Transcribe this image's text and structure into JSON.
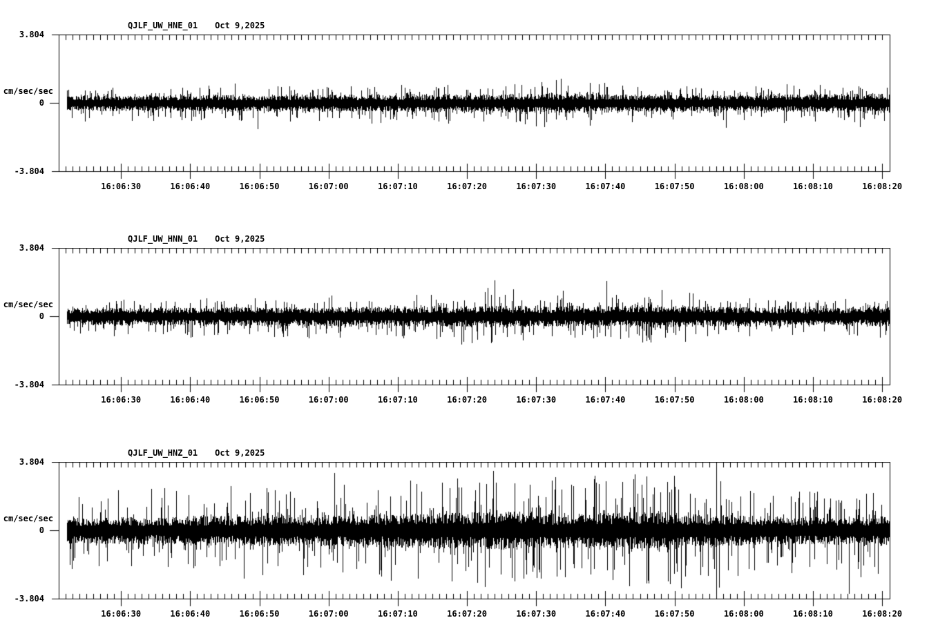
{
  "colors": {
    "foreground": "#000000",
    "background": "#ffffff"
  },
  "chart_data": [
    {
      "type": "line",
      "title": "QJLF_UW_HNE_01",
      "date": "Oct 9,2025",
      "ylabel": "cm/sec/sec",
      "ylim": [
        -3.804,
        3.804
      ],
      "yticks": [
        "3.804",
        "0",
        "-3.804"
      ],
      "x_start": "16:06:21",
      "x_end": "16:08:21",
      "x_major_interval_s": 10,
      "x_minor_interval_s": 1,
      "x_major_tick_labels": [
        "16:06:30",
        "16:06:40",
        "16:06:50",
        "16:07:00",
        "16:07:10",
        "16:07:20",
        "16:07:30",
        "16:07:40",
        "16:07:50",
        "16:08:00",
        "16:08:10",
        "16:08:20"
      ],
      "envelope": {
        "sample_interval_s": 5,
        "band": [
          0.34,
          0.36,
          0.35,
          0.37,
          0.36,
          0.38,
          0.36,
          0.38,
          0.4,
          0.38,
          0.4,
          0.42,
          0.4,
          0.42,
          0.44,
          0.42,
          0.4,
          0.4,
          0.38,
          0.38,
          0.36,
          0.38,
          0.4,
          0.42,
          0.44
        ],
        "peak": [
          0.9,
          0.95,
          1.0,
          0.9,
          1.05,
          1.0,
          1.1,
          0.95,
          1.05,
          1.1,
          1.0,
          1.15,
          1.05,
          1.2,
          1.45,
          1.3,
          1.1,
          1.05,
          1.0,
          0.95,
          1.0,
          1.2,
          0.95,
          1.05,
          1.15
        ]
      },
      "notable_spikes": []
    },
    {
      "type": "line",
      "title": "QJLF_UW_HNN_01",
      "date": "Oct 9,2025",
      "ylabel": "cm/sec/sec",
      "ylim": [
        -3.804,
        3.804
      ],
      "yticks": [
        "3.804",
        "0",
        "-3.804"
      ],
      "x_start": "16:06:21",
      "x_end": "16:08:21",
      "x_major_interval_s": 10,
      "x_minor_interval_s": 1,
      "x_major_tick_labels": [
        "16:06:30",
        "16:06:40",
        "16:06:50",
        "16:07:00",
        "16:07:10",
        "16:07:20",
        "16:07:30",
        "16:07:40",
        "16:07:50",
        "16:08:00",
        "16:08:10",
        "16:08:20"
      ],
      "envelope": {
        "sample_interval_s": 5,
        "band": [
          0.36,
          0.38,
          0.38,
          0.4,
          0.4,
          0.42,
          0.44,
          0.42,
          0.44,
          0.44,
          0.46,
          0.46,
          0.48,
          0.5,
          0.46,
          0.44,
          0.46,
          0.52,
          0.5,
          0.44,
          0.42,
          0.4,
          0.4,
          0.42,
          0.44
        ],
        "peak": [
          0.9,
          1.0,
          1.0,
          1.1,
          1.2,
          1.1,
          1.3,
          1.2,
          1.25,
          1.2,
          1.3,
          1.4,
          1.7,
          1.5,
          1.3,
          1.25,
          1.35,
          1.85,
          1.6,
          1.2,
          1.1,
          1.05,
          1.0,
          1.1,
          1.2
        ]
      },
      "notable_spikes": []
    },
    {
      "type": "line",
      "title": "QJLF_UW_HNZ_01",
      "date": "Oct 9,2025",
      "ylabel": "cm/sec/sec",
      "ylim": [
        -3.804,
        3.804
      ],
      "yticks": [
        "3.804",
        "0",
        "-3.804"
      ],
      "x_start": "16:06:21",
      "x_end": "16:08:21",
      "x_major_interval_s": 10,
      "x_minor_interval_s": 1,
      "x_major_tick_labels": [
        "16:06:30",
        "16:06:40",
        "16:06:50",
        "16:07:00",
        "16:07:10",
        "16:07:20",
        "16:07:30",
        "16:07:40",
        "16:07:50",
        "16:08:00",
        "16:08:10",
        "16:08:20"
      ],
      "envelope": {
        "sample_interval_s": 5,
        "band": [
          0.55,
          0.6,
          0.62,
          0.6,
          0.65,
          0.68,
          0.7,
          0.72,
          0.7,
          0.75,
          0.78,
          0.8,
          0.85,
          0.88,
          0.8,
          0.78,
          0.8,
          0.85,
          0.8,
          0.72,
          0.68,
          0.65,
          0.62,
          0.65,
          0.7
        ],
        "peak": [
          2.3,
          2.0,
          2.2,
          2.4,
          2.3,
          2.6,
          2.5,
          2.7,
          2.6,
          2.9,
          3.0,
          3.2,
          3.65,
          3.5,
          3.0,
          2.9,
          3.1,
          3.45,
          3.2,
          2.8,
          2.6,
          2.5,
          2.3,
          2.5,
          2.8
        ]
      },
      "notable_spikes": [
        {
          "t_s": 95,
          "amplitude": 3.8
        }
      ]
    }
  ]
}
